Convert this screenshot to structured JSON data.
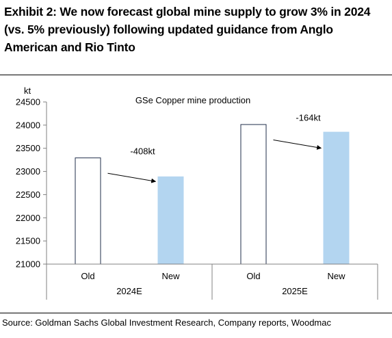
{
  "title": "Exhibit 2: We now forecast global mine supply to grow 3% in 2024 (vs. 5% previously) following updated guidance from Anglo American and Rio Tinto",
  "source": "Source: Goldman Sachs Global Investment Research, Company reports, Woodmac",
  "colors": {
    "new_fill": "#b3d5f0",
    "old_fill": "#ffffff",
    "old_stroke": "#1f2d4a",
    "axis": "#808080",
    "text": "#000000"
  },
  "chart_data": {
    "type": "bar",
    "title": "GSe Copper mine production",
    "ylabel": "kt",
    "ylim": [
      21000,
      24500
    ],
    "yticks": [
      21000,
      21500,
      22000,
      22500,
      23000,
      23500,
      24000,
      24500
    ],
    "groups": [
      "2024E",
      "2025E"
    ],
    "categories": [
      "Old",
      "New",
      "Old",
      "New"
    ],
    "bars": [
      {
        "group": "2024E",
        "label": "Old",
        "value": 23300,
        "style": "old"
      },
      {
        "group": "2024E",
        "label": "New",
        "value": 22892,
        "style": "new"
      },
      {
        "group": "2025E",
        "label": "Old",
        "value": 24020,
        "style": "old"
      },
      {
        "group": "2025E",
        "label": "New",
        "value": 23856,
        "style": "new"
      }
    ],
    "annotations": [
      {
        "text": "-408kt",
        "from_bar": 0,
        "to_bar": 1
      },
      {
        "text": "-164kt",
        "from_bar": 2,
        "to_bar": 3
      }
    ],
    "grid": false,
    "legend": "none"
  }
}
